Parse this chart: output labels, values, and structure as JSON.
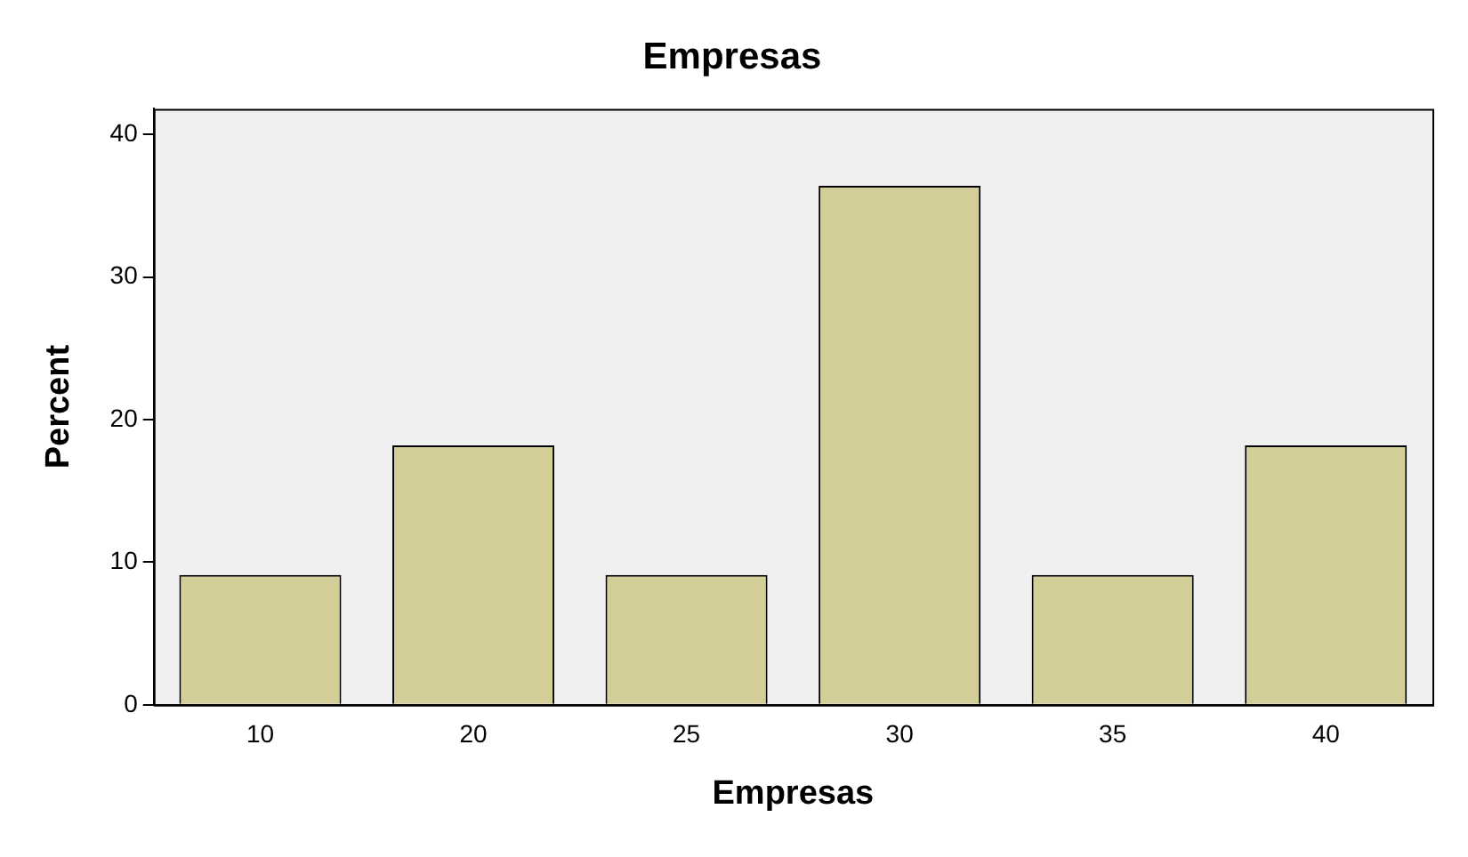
{
  "chart_data": {
    "type": "bar",
    "title": "Empresas",
    "xlabel": "Empresas",
    "ylabel": "Percent",
    "categories": [
      "10",
      "20",
      "25",
      "30",
      "35",
      "40"
    ],
    "values": [
      9.1,
      18.2,
      9.1,
      36.4,
      9.1,
      18.2
    ],
    "color": "#d3ce97",
    "ylim": [
      0,
      41.8
    ],
    "yticks": [
      0,
      10,
      20,
      30,
      40
    ],
    "grid": false,
    "legend": false
  }
}
